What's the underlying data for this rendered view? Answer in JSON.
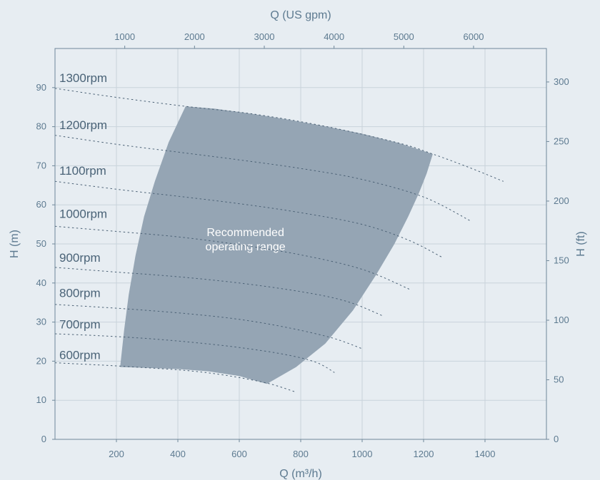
{
  "chart_data": {
    "type": "line",
    "title": "",
    "xlabel_bottom": "Q (m³/h)",
    "xlabel_top": "Q (US gpm)",
    "ylabel_left": "H (m)",
    "ylabel_right": "H (ft)",
    "xlim": [
      0,
      1600
    ],
    "ylim": [
      0,
      100
    ],
    "x_ticks": [
      200,
      400,
      600,
      800,
      1000,
      1200,
      1400
    ],
    "y_ticks": [
      0,
      10,
      20,
      30,
      40,
      50,
      60,
      70,
      80,
      90
    ],
    "top_ticks_usgpm": [
      1000,
      2000,
      3000,
      4000,
      5000,
      6000
    ],
    "right_ticks_ft": [
      0,
      50,
      100,
      150,
      200,
      250,
      300
    ],
    "grid": true,
    "region": {
      "label_lines": [
        "Recommended",
        "operating range"
      ],
      "label_at": [
        620,
        52
      ],
      "boundary": [
        [
          212,
          18.5
        ],
        [
          225,
          28
        ],
        [
          240,
          37
        ],
        [
          262,
          47
        ],
        [
          290,
          57
        ],
        [
          325,
          66
        ],
        [
          370,
          76
        ],
        [
          425,
          85.2
        ],
        [
          520,
          84.6
        ],
        [
          640,
          83.3
        ],
        [
          760,
          81.8
        ],
        [
          880,
          80.1
        ],
        [
          1000,
          78.2
        ],
        [
          1120,
          75.8
        ],
        [
          1230,
          73
        ],
        [
          1210,
          68
        ],
        [
          1185,
          63
        ],
        [
          1150,
          57
        ],
        [
          1105,
          50
        ],
        [
          1045,
          42
        ],
        [
          970,
          33
        ],
        [
          880,
          24.5
        ],
        [
          785,
          18.5
        ],
        [
          690,
          14.2
        ],
        [
          600,
          16.2
        ],
        [
          500,
          17.4
        ],
        [
          400,
          18.0
        ],
        [
          300,
          18.3
        ]
      ]
    },
    "series": [
      {
        "label": "600rpm",
        "label_y": 21.6,
        "points": [
          [
            0,
            19.6
          ],
          [
            100,
            19.2
          ],
          [
            200,
            18.8
          ],
          [
            300,
            18.3
          ],
          [
            400,
            17.8
          ],
          [
            500,
            17
          ],
          [
            600,
            15.8
          ],
          [
            700,
            14.2
          ],
          [
            780,
            12.2
          ]
        ]
      },
      {
        "label": "700rpm",
        "label_y": 29.5,
        "points": [
          [
            0,
            27
          ],
          [
            150,
            26.5
          ],
          [
            300,
            25.8
          ],
          [
            450,
            24.8
          ],
          [
            600,
            23.5
          ],
          [
            750,
            21.7
          ],
          [
            850,
            19.7
          ],
          [
            910,
            17.1
          ]
        ]
      },
      {
        "label": "800rpm",
        "label_y": 37.5,
        "points": [
          [
            0,
            34.5
          ],
          [
            150,
            33.8
          ],
          [
            300,
            33
          ],
          [
            450,
            32
          ],
          [
            600,
            30.7
          ],
          [
            750,
            28.7
          ],
          [
            900,
            26
          ],
          [
            1000,
            23.2
          ]
        ]
      },
      {
        "label": "900rpm",
        "label_y": 46.5,
        "points": [
          [
            0,
            44
          ],
          [
            200,
            42.8
          ],
          [
            400,
            41.6
          ],
          [
            600,
            40
          ],
          [
            800,
            37.8
          ],
          [
            950,
            35.3
          ],
          [
            1070,
            31.5
          ]
        ]
      },
      {
        "label": "1000rpm",
        "label_y": 57.8,
        "points": [
          [
            0,
            54.5
          ],
          [
            200,
            53.2
          ],
          [
            400,
            51.8
          ],
          [
            600,
            49.8
          ],
          [
            800,
            47.2
          ],
          [
            1000,
            43.5
          ],
          [
            1160,
            38.2
          ]
        ]
      },
      {
        "label": "1100rpm",
        "label_y": 68.8,
        "points": [
          [
            0,
            66
          ],
          [
            200,
            64
          ],
          [
            400,
            62.2
          ],
          [
            600,
            60.3
          ],
          [
            800,
            58
          ],
          [
            1000,
            55
          ],
          [
            1150,
            51
          ],
          [
            1260,
            46.6
          ]
        ]
      },
      {
        "label": "1200rpm",
        "label_y": 80.5,
        "points": [
          [
            0,
            77.8
          ],
          [
            200,
            75.5
          ],
          [
            400,
            73.5
          ],
          [
            600,
            71.5
          ],
          [
            800,
            69.3
          ],
          [
            1000,
            66.5
          ],
          [
            1200,
            62
          ],
          [
            1350,
            56
          ]
        ]
      },
      {
        "label": "1300rpm",
        "label_y": 92.5,
        "points": [
          [
            0,
            89.8
          ],
          [
            200,
            87.5
          ],
          [
            425,
            85.2
          ],
          [
            640,
            83.3
          ],
          [
            880,
            80.1
          ],
          [
            1120,
            75.8
          ],
          [
            1230,
            73
          ],
          [
            1350,
            69.5
          ],
          [
            1460,
            66
          ]
        ]
      }
    ]
  }
}
